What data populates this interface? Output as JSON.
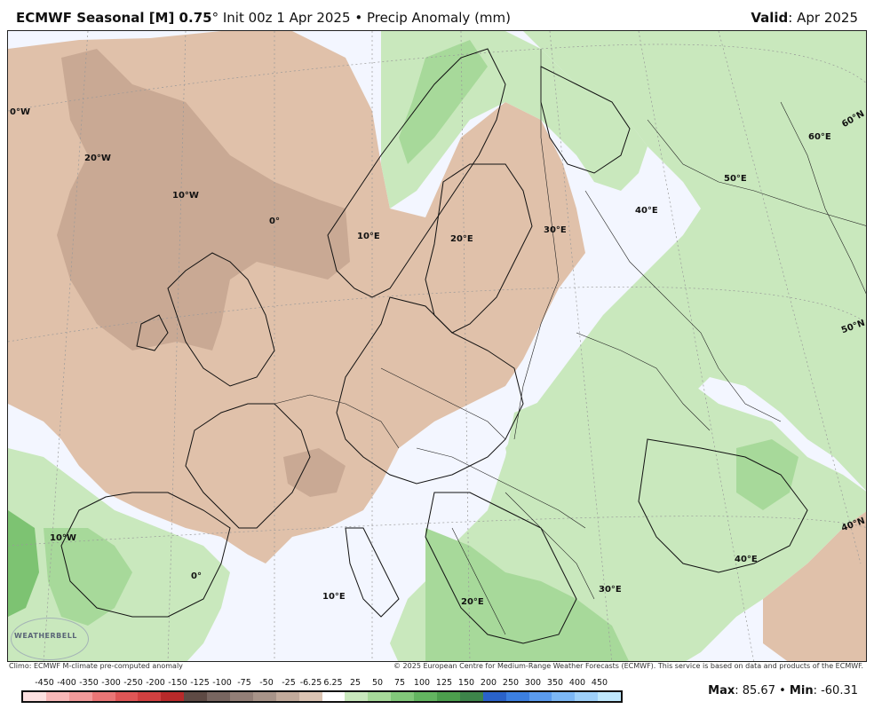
{
  "header": {
    "model": "ECMWF Seasonal [M] 0.75",
    "degree": "°",
    "init": "Init 00z 1 Apr 2025",
    "bullet": "•",
    "field": "Precip Anomaly (mm)",
    "valid_label": "Valid",
    "valid_value": ": Apr 2025"
  },
  "map_labels": {
    "lon_0w_top": "0°W",
    "lon_20w": "20°W",
    "lon_10w": "10°W",
    "lon_0": "0°",
    "lon_10e_n": "10°E",
    "lon_20e_n": "20°E",
    "lon_30e_n": "30°E",
    "lon_40e_n": "40°E",
    "lon_50e": "50°E",
    "lon_60e": "60°E",
    "lat_60n": "60°N",
    "lat_50n": "50°N",
    "lat_40n": "40°N",
    "lon_10w_s": "10°W",
    "lon_0_s": "0°",
    "lon_10e_s": "10°E",
    "lon_20e_s": "20°E",
    "lon_30e_s": "30°E",
    "lon_40e_s": "40°E"
  },
  "footer": {
    "climo": "Climo: ECMWF M-climate pre-computed anomaly",
    "copyright": "© 2025 European Centre for Medium-Range Weather Forecasts (ECMWF). This service is based on data and products of the ECMWF.",
    "max_label": "Max",
    "max_value": ": 85.67",
    "sep": " • ",
    "min_label": "Min",
    "min_value": ": -60.31",
    "logo_text": "WEATHERBELL"
  },
  "colorbar": {
    "ticks": [
      "-450",
      "-400",
      "-350",
      "-300",
      "-250",
      "-200",
      "-150",
      "-125",
      "-100",
      "-75",
      "-50",
      "-25",
      "-6.25",
      "6.25",
      "25",
      "50",
      "75",
      "100",
      "125",
      "150",
      "200",
      "250",
      "300",
      "350",
      "400",
      "450"
    ],
    "colors": [
      "#fde0e0",
      "#f8b8b8",
      "#f29a9a",
      "#ea7676",
      "#df5656",
      "#d14040",
      "#b82a2a",
      "#5e4a44",
      "#786660",
      "#937f77",
      "#a89489",
      "#c2ab9c",
      "#dbc4b3",
      "#ffffff",
      "#c9e8bd",
      "#a7d99a",
      "#82c87a",
      "#63b560",
      "#4c9f4d",
      "#3d844a",
      "#2a62c9",
      "#3c7fe0",
      "#5b9bee",
      "#7cb7f5",
      "#9ed0fa",
      "#bfe8fd"
    ]
  },
  "colors": {
    "dry_light": "#e0c1aa",
    "dry_mid": "#c9a994",
    "wet_light": "#c9e8bd",
    "wet_mid": "#a7d99a",
    "wet_dark": "#7dc372",
    "neutral": "#f3f6ff"
  }
}
